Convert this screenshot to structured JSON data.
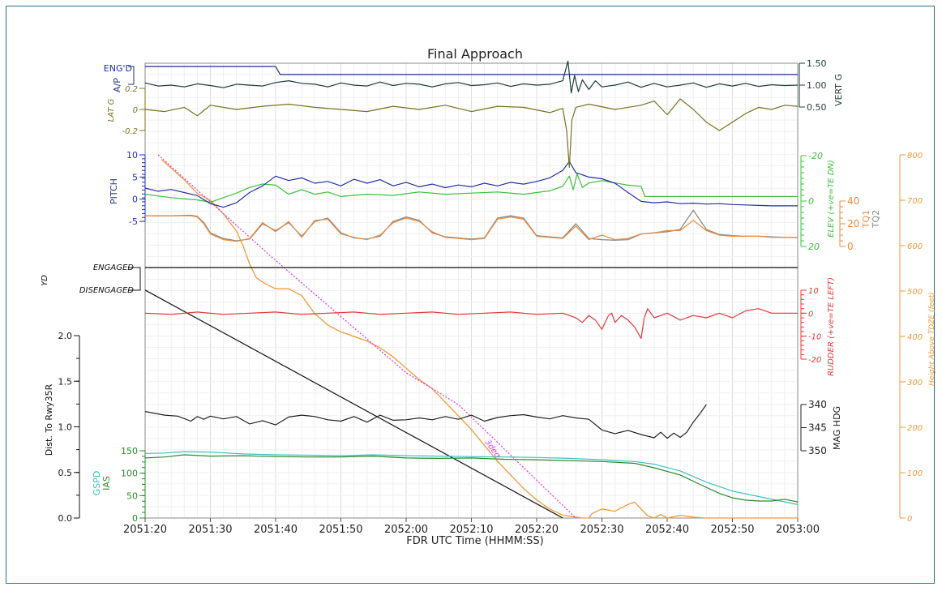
{
  "chart_data": {
    "type": "line",
    "title": "Final Approach",
    "xlabel": "FDR UTC Time (HHMM:SS)",
    "x_ticks": [
      "2051:20",
      "2051:30",
      "2051:40",
      "2051:50",
      "2052:00",
      "2052:10",
      "2052:20",
      "2052:30",
      "2052:40",
      "2052:50",
      "2053:00"
    ],
    "xlim_seconds": [
      0,
      100
    ],
    "grid": true,
    "colors": {
      "ap": "#1d2d8f",
      "vert_g": "#1e3d3b",
      "lat_g": "#7a7020",
      "pitch": "#2430a8",
      "elev": "#3cbf3c",
      "tq1": "#f08a3a",
      "tq2": "#8a8a8a",
      "yd": "#111111",
      "rudder": "#e03a3a",
      "height": "#f29a38",
      "glideslope": "#dd33dd",
      "dist": "#111111",
      "mag_hdg": "#222222",
      "gspd": "#3cc0c0",
      "ias": "#2a8a2a"
    },
    "panels": {
      "ap": {
        "label": "A/P",
        "states": [
          "ENG'D"
        ],
        "x": [
          0,
          20,
          20.7,
          100
        ],
        "values": [
          1,
          1,
          0.55,
          0.55
        ]
      },
      "vert_g": {
        "label": "VERT G",
        "ticks": [
          "1.50",
          "1.00",
          "0.50"
        ],
        "ylim": [
          0.5,
          1.5
        ],
        "x": [
          0,
          2,
          4,
          6,
          8,
          10,
          12,
          14,
          16,
          18,
          20,
          22,
          24,
          26,
          28,
          30,
          32,
          34,
          36,
          38,
          40,
          42,
          44,
          46,
          48,
          50,
          52,
          54,
          56,
          58,
          60,
          62,
          64,
          64.8,
          65.3,
          65.8,
          66.4,
          67,
          68,
          69,
          70,
          72,
          74,
          76,
          78,
          80,
          82,
          84,
          86,
          88,
          90,
          92,
          94,
          96,
          98,
          100
        ],
        "values": [
          1.05,
          0.98,
          1.0,
          0.96,
          1.03,
          0.99,
          0.94,
          1.02,
          1.0,
          0.98,
          1.06,
          1.1,
          1.04,
          1.02,
          0.96,
          1.05,
          1.0,
          0.98,
          1.07,
          0.99,
          1.04,
          1.02,
          0.96,
          1.03,
          1.06,
          0.99,
          1.01,
          1.05,
          0.97,
          1.03,
          1.0,
          1.02,
          1.1,
          1.55,
          0.82,
          1.22,
          0.85,
          1.12,
          0.9,
          1.1,
          0.96,
          1.0,
          1.07,
          0.95,
          1.04,
          0.96,
          1.0,
          1.05,
          0.95,
          1.03,
          0.98,
          1.04,
          0.97,
          1.01,
          0.99,
          1.0
        ]
      },
      "lat_g": {
        "label": "LAT G",
        "ticks": [
          "0.2",
          "0",
          "-0.2"
        ],
        "ylim": [
          -0.3,
          0.3
        ],
        "x": [
          0,
          3,
          6,
          8,
          10,
          14,
          18,
          22,
          26,
          30,
          34,
          38,
          42,
          46,
          50,
          54,
          58,
          62,
          64,
          64.6,
          65,
          65.4,
          66,
          68,
          72,
          76,
          78,
          80,
          82,
          84,
          86,
          88,
          90,
          92,
          94,
          96,
          98,
          100
        ],
        "values": [
          0.0,
          -0.02,
          0.02,
          -0.06,
          0.04,
          0.0,
          0.03,
          0.05,
          0.02,
          0.0,
          -0.02,
          0.03,
          0.0,
          0.04,
          -0.02,
          0.03,
          0.02,
          -0.03,
          0.01,
          -0.2,
          -0.55,
          -0.1,
          0.02,
          0.05,
          0.0,
          0.04,
          0.08,
          -0.05,
          0.1,
          0.0,
          -0.12,
          -0.2,
          -0.12,
          -0.04,
          0.02,
          0.0,
          0.04,
          0.03
        ]
      },
      "pitch": {
        "label": "PITCH",
        "ticks": [
          "10",
          "5",
          "0",
          "-5"
        ],
        "ylim": [
          -7,
          10
        ],
        "x": [
          0,
          2,
          4,
          6,
          8,
          10,
          12,
          14,
          16,
          18,
          20,
          22,
          24,
          26,
          28,
          30,
          32,
          34,
          36,
          38,
          40,
          42,
          44,
          46,
          48,
          50,
          52,
          54,
          56,
          58,
          60,
          62,
          64,
          65,
          66,
          68,
          70,
          72,
          74,
          76,
          78,
          80,
          82,
          84,
          86,
          88,
          90,
          92,
          94,
          96,
          98,
          100
        ],
        "values": [
          2.5,
          1.8,
          2.2,
          1.5,
          0.8,
          -1.0,
          -1.8,
          -0.8,
          1.5,
          3.0,
          5.2,
          4.2,
          4.8,
          3.6,
          4.0,
          3.0,
          4.5,
          3.6,
          4.4,
          3.0,
          3.8,
          2.8,
          3.4,
          2.6,
          3.2,
          2.8,
          3.6,
          3.0,
          3.8,
          3.4,
          4.0,
          4.8,
          6.5,
          8.5,
          6.0,
          5.0,
          4.6,
          3.6,
          1.5,
          -0.5,
          -0.8,
          -0.6,
          -1.0,
          -0.9,
          -1.1,
          -1.0,
          -1.2,
          -1.3,
          -1.4,
          -1.5,
          -1.5,
          -1.5
        ]
      },
      "elev": {
        "label": "ELEV (+ve=TE DN)",
        "ticks": [
          "-20",
          "0",
          "20"
        ],
        "ylim": [
          -20,
          20
        ],
        "x": [
          0,
          4,
          8,
          10,
          12,
          14,
          16,
          18,
          20,
          22,
          24,
          26,
          28,
          30,
          34,
          38,
          42,
          46,
          50,
          54,
          58,
          62,
          64,
          65,
          65.6,
          66.2,
          67,
          68,
          70,
          72,
          74,
          76,
          76.6,
          80,
          100
        ],
        "values": [
          -3,
          -1.5,
          -0.5,
          0.5,
          -1.5,
          -3.5,
          -6,
          -7.5,
          -7,
          -3,
          -5,
          -3,
          -4,
          -2,
          -3,
          -2.5,
          -4,
          -3,
          -3.5,
          -4,
          -3,
          -4.5,
          -6.5,
          -11,
          -5,
          -12,
          -6,
          -8,
          -9,
          -8,
          -7,
          -6.5,
          -2,
          -2,
          -2
        ]
      },
      "tq1": {
        "label": "TQ1",
        "ticks": [
          "40",
          "20",
          "0"
        ],
        "ylim": [
          0,
          40
        ],
        "x": [
          0,
          4,
          7,
          8,
          9,
          10,
          12,
          14,
          16,
          18,
          20,
          22,
          24,
          26,
          28,
          30,
          32,
          34,
          36,
          38,
          40,
          42,
          44,
          46,
          48,
          50,
          52,
          54,
          56,
          58,
          60,
          62,
          64,
          66,
          68,
          70,
          72,
          74,
          76,
          78,
          80,
          82,
          84,
          86,
          88,
          90,
          92,
          94,
          96,
          98,
          100
        ],
        "values": [
          27,
          27,
          27,
          26,
          20,
          11,
          6,
          4.5,
          7,
          21,
          13,
          22,
          8,
          23,
          24,
          11,
          8,
          6,
          10,
          21,
          25,
          22,
          13,
          8,
          7,
          6,
          7,
          24,
          26,
          24,
          9,
          8,
          7,
          18,
          6,
          10,
          6,
          7,
          11,
          12,
          14,
          14,
          23,
          14,
          10,
          9,
          9,
          9,
          8,
          8,
          8
        ]
      },
      "tq2": {
        "label": "TQ2",
        "x": [
          0,
          4,
          7,
          8,
          9,
          10,
          12,
          14,
          16,
          18,
          20,
          22,
          24,
          26,
          28,
          30,
          32,
          34,
          36,
          38,
          40,
          42,
          44,
          46,
          48,
          50,
          52,
          54,
          56,
          58,
          60,
          62,
          64,
          66,
          68,
          70,
          72,
          74,
          76,
          78,
          80,
          82,
          84,
          86,
          88,
          90,
          92,
          94,
          96,
          98,
          100
        ],
        "values": [
          27,
          27,
          27.5,
          26.5,
          21,
          12,
          7,
          5,
          6.5,
          20,
          14,
          21,
          9,
          22,
          25,
          12,
          7.5,
          6.5,
          9,
          22,
          26,
          23,
          12,
          8.5,
          7.5,
          6.5,
          7.5,
          25,
          27,
          25,
          9.5,
          8.5,
          7.5,
          20,
          7,
          6,
          5.5,
          6,
          11,
          12,
          13,
          15,
          32,
          15,
          10.5,
          9.5,
          9,
          9,
          8.5,
          8,
          8
        ]
      },
      "yd": {
        "label": "YD",
        "states": [
          "ENGAGED",
          "DISENGAGED"
        ],
        "x": [
          0,
          100
        ],
        "values": [
          1,
          1
        ]
      },
      "rudder": {
        "label": "RUDDER (+ve=TE LEFT)",
        "ticks": [
          "10",
          "0",
          "-10",
          "-20"
        ],
        "ylim": [
          -20,
          10
        ],
        "x": [
          0,
          4,
          8,
          12,
          16,
          20,
          24,
          28,
          32,
          36,
          40,
          44,
          48,
          52,
          56,
          60,
          64,
          66,
          67,
          68,
          69,
          70,
          71,
          71.5,
          72,
          73,
          74,
          75,
          76,
          76.5,
          77,
          78,
          80,
          82,
          84,
          86,
          88,
          90,
          92,
          94,
          96,
          100
        ],
        "values": [
          0,
          -0.5,
          0.5,
          -0.5,
          0,
          0.5,
          -0.5,
          0,
          0.5,
          -0.5,
          0,
          0.5,
          -0.5,
          0,
          0.5,
          -0.5,
          0,
          -2,
          -4,
          -1,
          -3,
          -7,
          -1,
          0,
          -4,
          -1,
          -3,
          -6,
          -11,
          -2,
          2,
          -2,
          0,
          -3,
          -1,
          -2,
          0,
          -2,
          1,
          2,
          0,
          0
        ]
      },
      "height": {
        "label": "Height Above TDZE (feet)",
        "ticks": [
          "800",
          "700",
          "600",
          "500",
          "400",
          "300",
          "200",
          "100",
          "0"
        ],
        "ylim": [
          0,
          800
        ],
        "x": [
          2.5,
          6,
          8,
          10,
          12,
          14,
          15,
          16,
          17,
          18,
          19,
          20,
          22,
          24,
          26,
          28,
          30,
          32,
          34,
          36,
          38,
          40,
          42,
          44,
          46,
          48,
          50,
          52,
          54,
          56,
          58,
          60,
          62,
          64,
          66,
          67,
          68,
          68.5,
          70,
          72,
          74,
          75,
          76,
          77,
          78,
          79,
          80,
          82,
          84,
          86,
          88,
          90,
          92,
          94,
          96,
          98,
          100
        ],
        "values": [
          790,
          745,
          715,
          700,
          670,
          632,
          600,
          560,
          530,
          520,
          512,
          505,
          505,
          490,
          450,
          425,
          410,
          400,
          390,
          375,
          355,
          330,
          305,
          285,
          255,
          225,
          195,
          160,
          125,
          95,
          65,
          40,
          20,
          6,
          2,
          0,
          0,
          10,
          20,
          15,
          30,
          35,
          20,
          5,
          0,
          8,
          0,
          6,
          2,
          0,
          0,
          0,
          0,
          0,
          0,
          0,
          0
        ]
      },
      "glideslope": {
        "label": "3deg",
        "x": [
          2,
          19,
          40,
          48,
          66
        ],
        "values": [
          800,
          580,
          320,
          250,
          0
        ]
      },
      "dist": {
        "label": "Dist. To Rwy35R",
        "ticks": [
          "2.0",
          "1.5",
          "1.0",
          "0.5",
          "0.0"
        ],
        "ylim": [
          0,
          2.0
        ],
        "x": [
          0,
          64
        ],
        "values": [
          2.5,
          0
        ]
      },
      "mag_hdg": {
        "label": "MAG HDG",
        "ticks": [
          "340",
          "345",
          "350"
        ],
        "ylim": [
          340,
          350
        ],
        "x": [
          0,
          3,
          5,
          7,
          8,
          9,
          10,
          12,
          14,
          16,
          18,
          20,
          22,
          24,
          26,
          28,
          30,
          32,
          34,
          36,
          38,
          40,
          42,
          44,
          46,
          48,
          50,
          52,
          54,
          56,
          58,
          60,
          62,
          64,
          66,
          68,
          70,
          72,
          74,
          76,
          78,
          79,
          80,
          81,
          82,
          83,
          84,
          85,
          86
        ],
        "values": [
          341.5,
          342.3,
          342.5,
          343.6,
          342.6,
          343.2,
          342.5,
          343.1,
          342.6,
          344.2,
          343.5,
          344.4,
          342.7,
          342.3,
          342.6,
          343.3,
          343.6,
          342.6,
          343.8,
          342.3,
          343.4,
          343.3,
          342.9,
          343.3,
          342.6,
          343.2,
          342.3,
          343.6,
          342.8,
          342.4,
          342.2,
          342.7,
          343.1,
          342.4,
          342.9,
          343.2,
          345.5,
          346.3,
          345.6,
          346.5,
          347.2,
          346.0,
          347.3,
          346.2,
          347.1,
          346.0,
          343.8,
          342.0,
          340.0
        ]
      },
      "gspd": {
        "label": "GSPD",
        "x": [
          0,
          3,
          6,
          10,
          15,
          20,
          25,
          30,
          35,
          40,
          45,
          50,
          55,
          60,
          65,
          70,
          75,
          78,
          82,
          86,
          90,
          95,
          100
        ],
        "values": [
          144,
          145,
          148,
          147,
          143,
          141,
          140,
          139,
          141,
          139,
          138,
          137,
          136,
          135,
          133,
          130,
          126,
          120,
          105,
          80,
          60,
          45,
          30
        ]
      },
      "ias": {
        "label": "IAS",
        "ticks": [
          "150",
          "100",
          "50",
          "0"
        ],
        "ylim": [
          0,
          150
        ],
        "x": [
          0,
          3,
          6,
          10,
          15,
          20,
          25,
          30,
          35,
          40,
          45,
          50,
          55,
          60,
          65,
          70,
          75,
          78,
          82,
          85,
          88,
          90,
          92,
          94,
          96,
          98,
          100
        ],
        "values": [
          134,
          136,
          141,
          138,
          139,
          137,
          136,
          136,
          138,
          134,
          133,
          134,
          131,
          130,
          128,
          126,
          122,
          112,
          96,
          75,
          55,
          45,
          40,
          38,
          38,
          42,
          36
        ]
      }
    }
  }
}
